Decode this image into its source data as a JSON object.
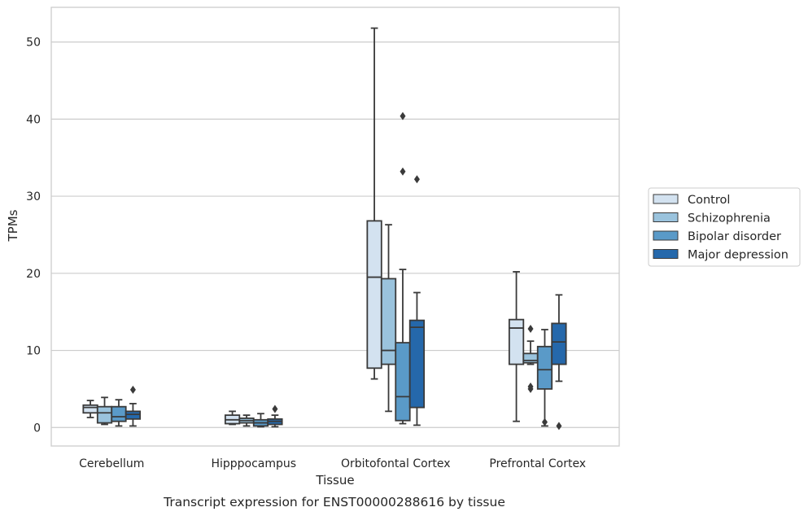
{
  "chart_data": {
    "type": "box",
    "title": "",
    "caption": "Transcript expression for ENST00000288616 by tissue",
    "xlabel": "Tissue",
    "ylabel": "TPMs",
    "ylim": [
      -2.4,
      54.5
    ],
    "yticks": [
      0,
      10,
      20,
      30,
      40,
      50
    ],
    "grid": true,
    "legend_position": "right",
    "categories": [
      "Cerebellum",
      "Hipppocampus",
      "Orbitofontal Cortex",
      "Prefrontal Cortex"
    ],
    "series": [
      {
        "name": "Control",
        "color": "#d3e2f0",
        "boxes": [
          {
            "whisker_low": 1.3,
            "q1": 1.9,
            "median": 2.6,
            "q3": 2.9,
            "whisker_high": 3.5,
            "outliers": []
          },
          {
            "whisker_low": 0.4,
            "q1": 0.5,
            "median": 1.0,
            "q3": 1.6,
            "whisker_high": 2.1,
            "outliers": []
          },
          {
            "whisker_low": 6.3,
            "q1": 7.7,
            "median": 19.5,
            "q3": 26.8,
            "whisker_high": 51.8,
            "outliers": []
          },
          {
            "whisker_low": 0.8,
            "q1": 8.2,
            "median": 12.9,
            "q3": 14.0,
            "whisker_high": 20.2,
            "outliers": []
          }
        ]
      },
      {
        "name": "Schizophrenia",
        "color": "#9ac3dd",
        "boxes": [
          {
            "whisker_low": 0.4,
            "q1": 0.6,
            "median": 1.9,
            "q3": 2.7,
            "whisker_high": 3.9,
            "outliers": []
          },
          {
            "whisker_low": 0.2,
            "q1": 0.6,
            "median": 0.9,
            "q3": 1.2,
            "whisker_high": 1.6,
            "outliers": []
          },
          {
            "whisker_low": 2.1,
            "q1": 8.2,
            "median": 10.0,
            "q3": 19.3,
            "whisker_high": 26.3,
            "outliers": []
          },
          {
            "whisker_low": 8.2,
            "q1": 8.4,
            "median": 8.7,
            "q3": 9.6,
            "whisker_high": 11.2,
            "outliers": [
              12.8,
              5.3,
              5.0
            ]
          }
        ]
      },
      {
        "name": "Bipolar disorder",
        "color": "#5a9ac8",
        "boxes": [
          {
            "whisker_low": 0.2,
            "q1": 0.8,
            "median": 1.4,
            "q3": 2.7,
            "whisker_high": 3.6,
            "outliers": []
          },
          {
            "whisker_low": 0.1,
            "q1": 0.2,
            "median": 0.6,
            "q3": 1.0,
            "whisker_high": 1.8,
            "outliers": []
          },
          {
            "whisker_low": 0.5,
            "q1": 0.9,
            "median": 4.0,
            "q3": 11.0,
            "whisker_high": 20.5,
            "outliers": [
              40.4,
              33.2
            ]
          },
          {
            "whisker_low": 0.2,
            "q1": 5.0,
            "median": 7.5,
            "q3": 10.5,
            "whisker_high": 12.7,
            "outliers": [
              0.7
            ]
          }
        ]
      },
      {
        "name": "Major depression",
        "color": "#2568ab",
        "boxes": [
          {
            "whisker_low": 0.2,
            "q1": 1.1,
            "median": 1.7,
            "q3": 2.1,
            "whisker_high": 3.1,
            "outliers": [
              4.9
            ]
          },
          {
            "whisker_low": 0.1,
            "q1": 0.4,
            "median": 0.8,
            "q3": 1.1,
            "whisker_high": 1.6,
            "outliers": [
              2.4
            ]
          },
          {
            "whisker_low": 0.3,
            "q1": 2.6,
            "median": 13.0,
            "q3": 13.9,
            "whisker_high": 17.5,
            "outliers": [
              32.2
            ]
          },
          {
            "whisker_low": 6.0,
            "q1": 8.2,
            "median": 11.1,
            "q3": 13.5,
            "whisker_high": 17.2,
            "outliers": [
              0.2
            ]
          }
        ]
      }
    ]
  }
}
